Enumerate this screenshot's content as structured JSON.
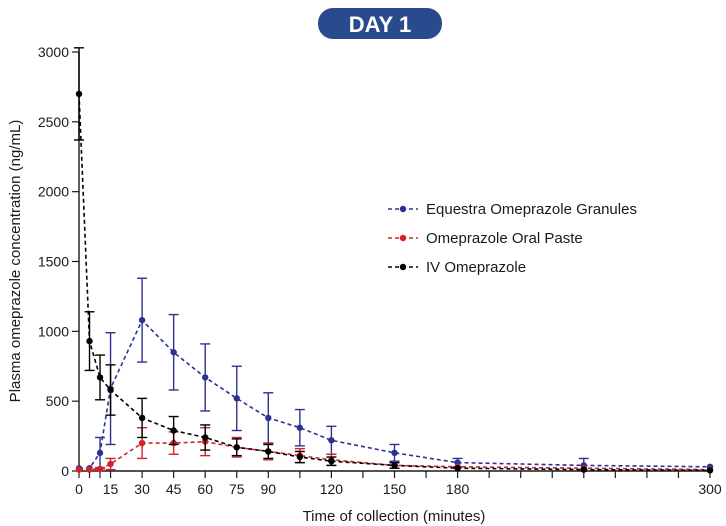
{
  "chart_data": {
    "type": "line",
    "title": "DAY 1",
    "title_badge_color": "#2a4a8e",
    "xlabel": "Time of collection (minutes)",
    "ylabel": "Plasma omeprazole concentration (ng/mL)",
    "xlim": [
      0,
      300
    ],
    "ylim": [
      0,
      3000
    ],
    "x_ticks": [
      0,
      15,
      30,
      45,
      60,
      75,
      90,
      120,
      150,
      180,
      300
    ],
    "x_minor_ticks": [
      5,
      10,
      105,
      135,
      165,
      195,
      210,
      225,
      240,
      255,
      270,
      285
    ],
    "y_ticks": [
      0,
      500,
      1000,
      1500,
      2000,
      2500,
      3000
    ],
    "grid": false,
    "legend_position": "right-middle",
    "series": [
      {
        "name": "Equestra Omeprazole Granules",
        "color": "#2e3192",
        "line_style": "dashed",
        "x": [
          0,
          5,
          10,
          15,
          30,
          45,
          60,
          75,
          90,
          105,
          120,
          150,
          180,
          240,
          300
        ],
        "y": [
          20,
          20,
          130,
          590,
          1080,
          850,
          670,
          520,
          380,
          310,
          220,
          130,
          60,
          40,
          30
        ],
        "error": [
          0,
          0,
          110,
          400,
          300,
          270,
          240,
          230,
          180,
          130,
          100,
          60,
          30,
          50,
          0
        ]
      },
      {
        "name": "Omeprazole Oral Paste",
        "color": "#d2232a",
        "line_style": "dashed",
        "x": [
          0,
          5,
          10,
          15,
          30,
          45,
          60,
          75,
          90,
          105,
          120,
          150,
          180,
          240,
          300
        ],
        "y": [
          10,
          10,
          15,
          50,
          200,
          200,
          210,
          170,
          140,
          110,
          80,
          40,
          30,
          20,
          10
        ],
        "error": [
          0,
          0,
          10,
          40,
          110,
          80,
          100,
          70,
          60,
          50,
          40,
          20,
          0,
          0,
          0
        ]
      },
      {
        "name": "IV Omeprazole",
        "color": "#000000",
        "line_style": "dashed",
        "x": [
          0,
          5,
          10,
          15,
          30,
          45,
          60,
          75,
          90,
          105,
          120,
          150,
          180,
          240,
          300
        ],
        "y": [
          2700,
          930,
          670,
          580,
          380,
          290,
          240,
          170,
          140,
          100,
          70,
          40,
          20,
          10,
          5
        ],
        "error": [
          330,
          210,
          160,
          180,
          140,
          100,
          90,
          60,
          50,
          40,
          30,
          20,
          0,
          0,
          0
        ]
      }
    ]
  }
}
